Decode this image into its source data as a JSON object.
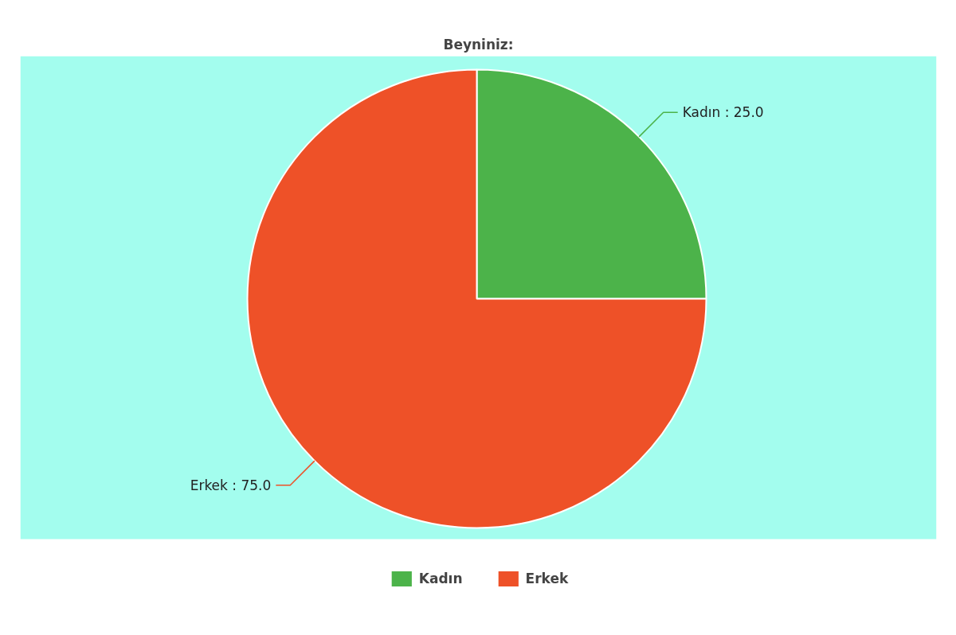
{
  "chart_data": {
    "type": "pie",
    "title": "Beyniniz:",
    "categories": [
      "Kadın",
      "Erkek"
    ],
    "values": [
      25,
      75
    ],
    "colors": [
      "#4cb34a",
      "#ee5128"
    ],
    "value_labels": [
      "Kadın : 25.0",
      "Erkek : 75.0"
    ],
    "legend": "bottom"
  }
}
